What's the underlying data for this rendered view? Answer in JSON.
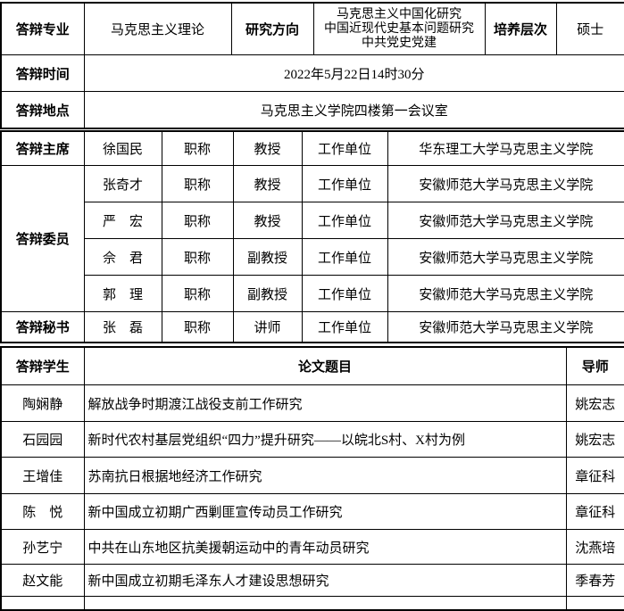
{
  "info": {
    "major_label": "答辩专业",
    "major_value": "马克思主义理论",
    "direction_label": "研究方向",
    "direction_lines": [
      "马克思主义中国化研究",
      "中国近现代史基本问题研究",
      "中共党史党建"
    ],
    "level_label": "培养层次",
    "level_value": "硕士",
    "time_label": "答辩时间",
    "time_value": "2022年5月22日14时30分",
    "location_label": "答辩地点",
    "location_value": "马克思主义学院四楼第一会议室"
  },
  "committee": {
    "chair_label": "答辩主席",
    "member_label": "答辩委员",
    "secretary_label": "答辩秘书",
    "title_label": "职称",
    "unit_label": "工作单位",
    "rows": [
      {
        "role": "chair",
        "name": "徐国民",
        "title": "教授",
        "unit": "华东理工大学马克思主义学院"
      },
      {
        "role": "member",
        "name": "张奇才",
        "title": "教授",
        "unit": "安徽师范大学马克思主义学院"
      },
      {
        "role": "member",
        "name": "严　宏",
        "title": "教授",
        "unit": "安徽师范大学马克思主义学院"
      },
      {
        "role": "member",
        "name": "佘　君",
        "title": "副教授",
        "unit": "安徽师范大学马克思主义学院"
      },
      {
        "role": "member",
        "name": "郭　理",
        "title": "副教授",
        "unit": "安徽师范大学马克思主义学院"
      },
      {
        "role": "secretary",
        "name": "张　磊",
        "title": "讲师",
        "unit": "安徽师范大学马克思主义学院"
      }
    ]
  },
  "students": {
    "header": {
      "student": "答辩学生",
      "thesis": "论文题目",
      "advisor": "导师"
    },
    "rows": [
      {
        "name": "陶娴静",
        "thesis": "解放战争时期渡江战役支前工作研究",
        "advisor": "姚宏志"
      },
      {
        "name": "石园园",
        "thesis": "新时代农村基层党组织“四力”提升研究——以皖北S村、X村为例",
        "advisor": "姚宏志"
      },
      {
        "name": "王增佳",
        "thesis": "苏南抗日根据地经济工作研究",
        "advisor": "章征科"
      },
      {
        "name": "陈　悦",
        "thesis": "新中国成立初期广西剿匪宣传动员工作研究",
        "advisor": "章征科"
      },
      {
        "name": "孙艺宁",
        "thesis": "中共在山东地区抗美援朝运动中的青年动员研究",
        "advisor": "沈燕培"
      },
      {
        "name": "赵文能",
        "thesis": "新中国成立初期毛泽东人才建设思想研究",
        "advisor": "季春芳"
      }
    ]
  }
}
